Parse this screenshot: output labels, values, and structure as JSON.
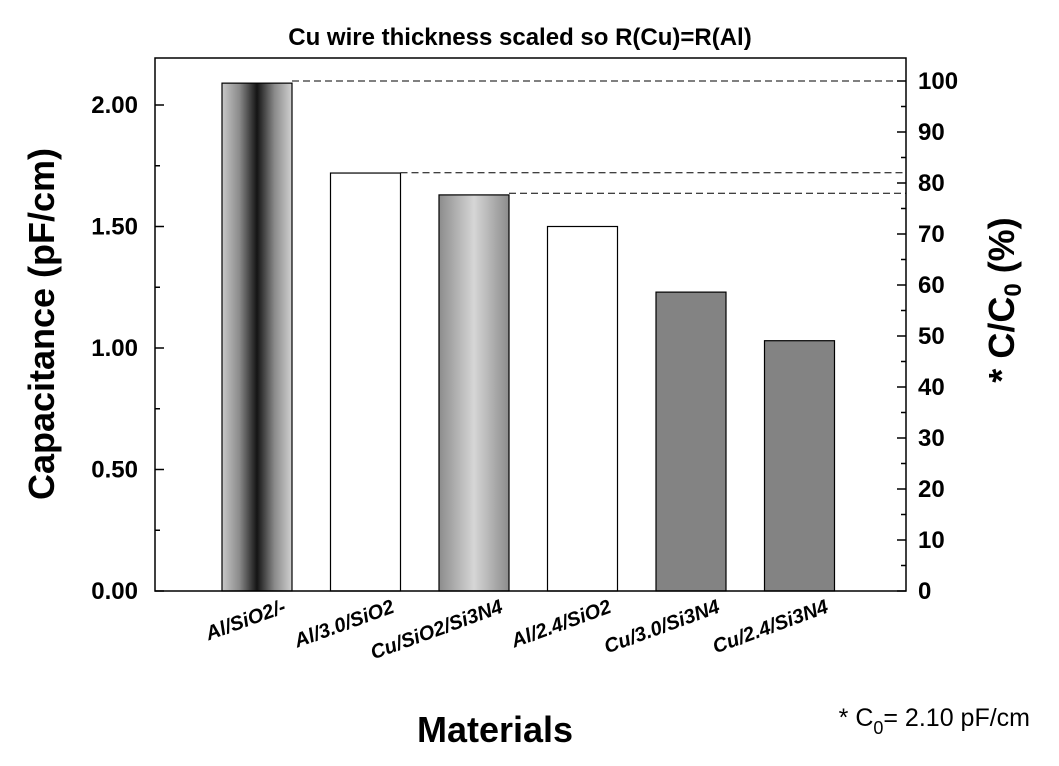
{
  "chart_data": {
    "type": "bar",
    "title": "Cu wire thickness scaled so R(Cu)=R(Al)",
    "xlabel": "Materials",
    "ylabel": "Capacitance (pF/cm)",
    "y2label": {
      "prefix": "* C/C",
      "subscript": "0",
      "suffix": " (%)"
    },
    "categories": [
      "Al/SiO2/-",
      "Al/3.0/SiO2",
      "Cu/SiO2/Si3N4",
      "Al/2.4/SiO2",
      "Cu/3.0/Si3N4",
      "Cu/2.4/Si3N4"
    ],
    "values": [
      2.09,
      1.72,
      1.63,
      1.5,
      1.23,
      1.03
    ],
    "ylim": [
      0,
      2.2
    ],
    "yticks": [
      "0.00",
      "0.50",
      "1.00",
      "1.50",
      "2.00"
    ],
    "y2lim": [
      0,
      100
    ],
    "y2ticks": [
      "0",
      "10",
      "20",
      "30",
      "40",
      "50",
      "60",
      "70",
      "80",
      "90",
      "100"
    ],
    "reference_lines_pct": [
      100,
      82,
      78
    ],
    "bar_fills": [
      "dark-gradient",
      "white",
      "light-gradient",
      "white",
      "gray",
      "gray"
    ],
    "footnote": {
      "prefix": "* C",
      "subscript": "0",
      "suffix": "= 2.10 pF/cm"
    }
  }
}
